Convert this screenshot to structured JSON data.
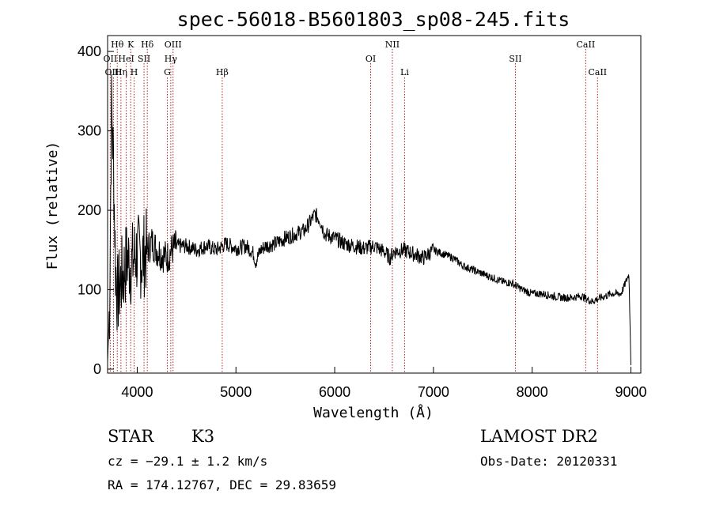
{
  "title": "spec-56018-B5601803_sp08-245.fits",
  "info": {
    "class": "STAR",
    "subclass": "K3",
    "survey": "LAMOST DR2",
    "cz": "cz = −29.1 ± 1.2 km/s",
    "obs_date": "Obs-Date: 20120331",
    "coords": "RA = 174.12767, DEC =  29.83659"
  },
  "chart_data": {
    "type": "line",
    "title": "spec-56018-B5601803_sp08-245.fits",
    "xlabel": "Wavelength (Å)",
    "ylabel": "Flux (relative)",
    "xlim": [
      3700,
      9100
    ],
    "ylim": [
      -5,
      420
    ],
    "x_ticks": [
      4000,
      5000,
      6000,
      7000,
      8000,
      9000
    ],
    "y_ticks": [
      0,
      100,
      200,
      300,
      400
    ],
    "grid": false,
    "series": [
      {
        "name": "flux",
        "x": [
          3700,
          3720,
          3740,
          3760,
          3780,
          3800,
          3830,
          3860,
          3900,
          3940,
          3980,
          4050,
          4100,
          4150,
          4200,
          4250,
          4300,
          4350,
          4400,
          4500,
          4600,
          4700,
          4800,
          4900,
          5000,
          5100,
          5150,
          5180,
          5200,
          5250,
          5300,
          5400,
          5500,
          5600,
          5700,
          5750,
          5800,
          5850,
          5900,
          6000,
          6100,
          6200,
          6300,
          6400,
          6500,
          6560,
          6600,
          6700,
          6800,
          6900,
          7000,
          7100,
          7200,
          7300,
          7400,
          7500,
          7600,
          7700,
          7800,
          7900,
          8000,
          8100,
          8200,
          8300,
          8400,
          8500,
          8600,
          8700,
          8800,
          8900,
          8950,
          8980,
          9000
        ],
        "y": [
          10,
          80,
          330,
          260,
          130,
          90,
          110,
          120,
          140,
          130,
          145,
          140,
          150,
          160,
          150,
          145,
          140,
          150,
          155,
          155,
          150,
          155,
          150,
          158,
          152,
          155,
          150,
          145,
          135,
          150,
          155,
          158,
          165,
          170,
          175,
          185,
          195,
          188,
          170,
          165,
          158,
          155,
          152,
          155,
          148,
          140,
          148,
          150,
          145,
          140,
          150,
          145,
          140,
          130,
          125,
          120,
          115,
          110,
          108,
          100,
          95,
          95,
          92,
          90,
          90,
          92,
          85,
          90,
          95,
          95,
          110,
          120,
          5
        ]
      }
    ],
    "lines_top": [
      {
        "label": "Hθ",
        "x": 3798,
        "row": 0
      },
      {
        "label": "K",
        "x": 3934,
        "row": 0
      },
      {
        "label": "Hδ",
        "x": 4102,
        "row": 0
      },
      {
        "label": "OIII",
        "x": 4363,
        "row": 0
      },
      {
        "label": "NII",
        "x": 6584,
        "row": 0
      },
      {
        "label": "CaII",
        "x": 8542,
        "row": 0
      },
      {
        "label": "OII",
        "x": 3727,
        "row": 1
      },
      {
        "label": "HeI",
        "x": 3889,
        "row": 1
      },
      {
        "label": "SII",
        "x": 4069,
        "row": 1
      },
      {
        "label": "Hγ",
        "x": 4340,
        "row": 1
      },
      {
        "label": "OI",
        "x": 6364,
        "row": 1
      },
      {
        "label": "SII",
        "x": 7830,
        "row": 1
      },
      {
        "label": "OIII",
        "x": 3760,
        "row": 2
      },
      {
        "label": "Hη",
        "x": 3835,
        "row": 2
      },
      {
        "label": "H",
        "x": 3969,
        "row": 2
      },
      {
        "label": "G",
        "x": 4305,
        "row": 2
      },
      {
        "label": "Hβ",
        "x": 4861,
        "row": 2
      },
      {
        "label": "Li",
        "x": 6708,
        "row": 2
      },
      {
        "label": "CaII",
        "x": 8662,
        "row": 2
      }
    ]
  }
}
